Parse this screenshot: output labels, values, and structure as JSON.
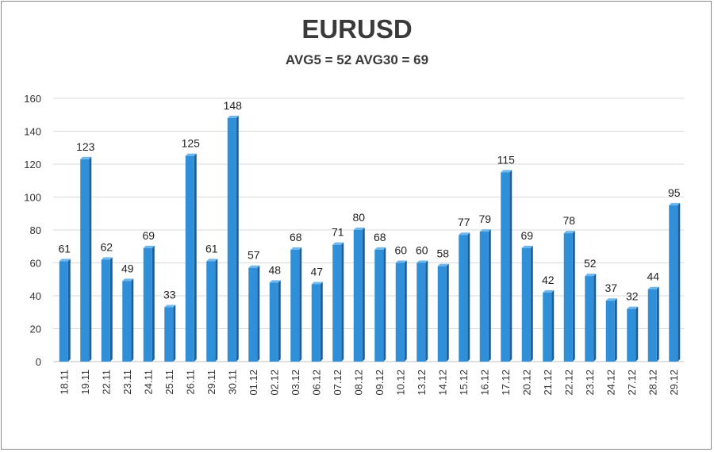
{
  "chart_data": {
    "type": "bar",
    "title": "EURUSD",
    "subtitle": "AVG5 = 52 AVG30 = 69",
    "categories": [
      "18.11",
      "19.11",
      "22.11",
      "23.11",
      "24.11",
      "25.11",
      "26.11",
      "29.11",
      "30.11",
      "01.12",
      "02.12",
      "03.12",
      "06.12",
      "07.12",
      "08.12",
      "09.12",
      "10.12",
      "13.12",
      "14.12",
      "15.12",
      "16.12",
      "17.12",
      "20.12",
      "21.12",
      "22.12",
      "23.12",
      "24.12",
      "27.12",
      "28.12",
      "29.12"
    ],
    "values": [
      61,
      123,
      62,
      49,
      69,
      33,
      125,
      61,
      148,
      57,
      48,
      68,
      47,
      71,
      80,
      68,
      60,
      60,
      58,
      77,
      79,
      115,
      69,
      42,
      78,
      52,
      37,
      32,
      44,
      95
    ],
    "ylim": [
      0,
      160
    ],
    "yticks": [
      0,
      20,
      40,
      60,
      80,
      100,
      120,
      140,
      160
    ],
    "grid": true,
    "legend": "none",
    "bar_color": "#2f8fd8",
    "bar_side_color": "#1c5f9a",
    "bar_top_color": "#6fb8ee",
    "grid_color": "#d9d9d9"
  }
}
